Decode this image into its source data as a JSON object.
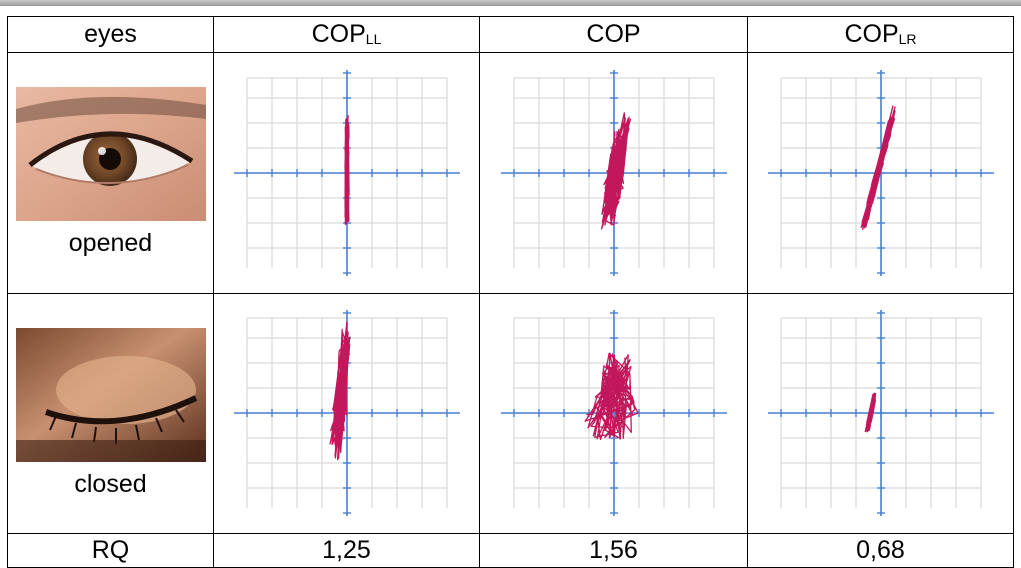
{
  "header": {
    "eyes": "eyes",
    "col1_main": "COP",
    "col1_sub": "LL",
    "col2_main": "COP",
    "col3_main": "COP",
    "col3_sub": "LR"
  },
  "rows": [
    {
      "label": "opened",
      "image": "eye-opened-photo"
    },
    {
      "label": "closed",
      "image": "eye-closed-photo"
    }
  ],
  "footer": {
    "label": "RQ",
    "values": [
      "1,25",
      "1,56",
      "0,68"
    ]
  },
  "colors": {
    "trace": "#c2185b",
    "axis": "#4a7fd4",
    "grid": "#d9d9d9"
  }
}
